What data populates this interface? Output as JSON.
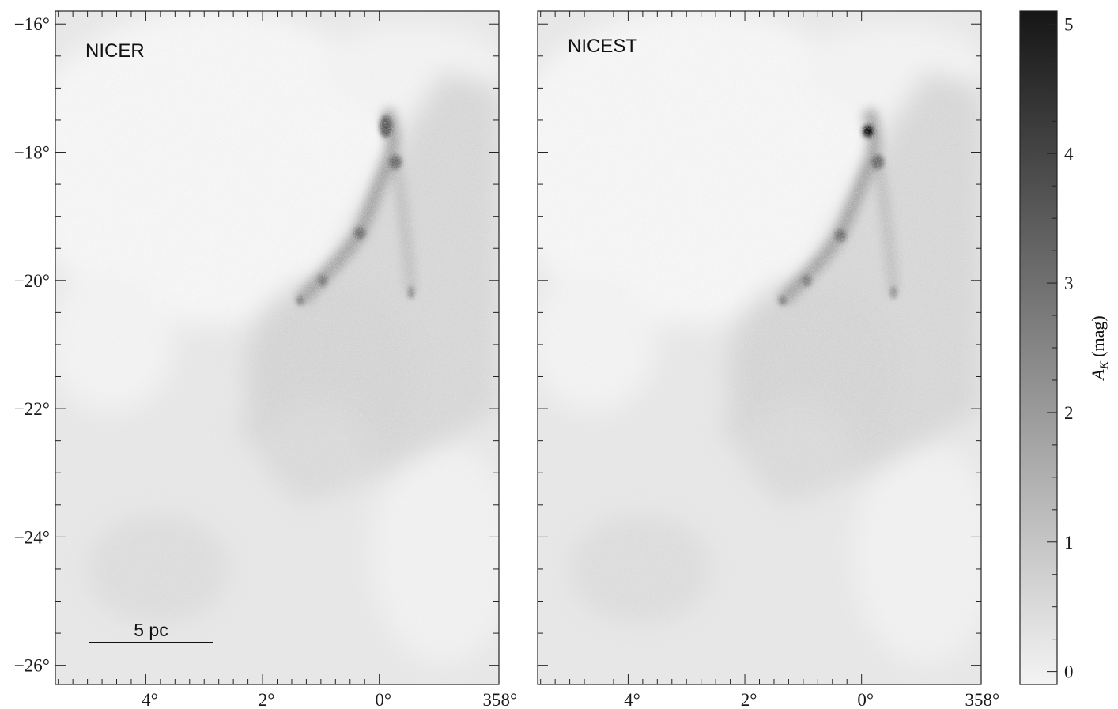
{
  "chart_data": [
    {
      "type": "heatmap",
      "panel_label": "NICER",
      "xlabel": "",
      "ylabel": "",
      "xlim": [
        5.55,
        357.95
      ],
      "ylim": [
        -26.3,
        -15.8
      ],
      "x_ticks": [
        {
          "value": 4,
          "label": "4°"
        },
        {
          "value": 2,
          "label": "2°"
        },
        {
          "value": 0,
          "label": "0°"
        },
        {
          "value": 358,
          "label": "358°"
        }
      ],
      "y_ticks": [
        {
          "value": -16,
          "label": "−16°"
        },
        {
          "value": -18,
          "label": "−18°"
        },
        {
          "value": -20,
          "label": "−20°"
        },
        {
          "value": -22,
          "label": "−22°"
        },
        {
          "value": -24,
          "label": "−24°"
        },
        {
          "value": -26,
          "label": "−26°"
        }
      ],
      "scale_bar": {
        "label": "5 pc"
      },
      "peak_extinction_mag": 2.5
    },
    {
      "type": "heatmap",
      "panel_label": "NICEST",
      "xlabel": "",
      "ylabel": "",
      "xlim": [
        5.55,
        357.95
      ],
      "ylim": [
        -26.3,
        -15.8
      ],
      "x_ticks": [
        {
          "value": 4,
          "label": "4°"
        },
        {
          "value": 2,
          "label": "2°"
        },
        {
          "value": 0,
          "label": "0°"
        },
        {
          "value": 358,
          "label": "358°"
        }
      ],
      "peak_extinction_mag": 4.8
    }
  ],
  "colorbar": {
    "label_main": "A",
    "label_sub": "K",
    "label_unit": " (mag)",
    "range": [
      -0.1,
      5.1
    ],
    "ticks": [
      {
        "value": 0,
        "label": "0"
      },
      {
        "value": 1,
        "label": "1"
      },
      {
        "value": 2,
        "label": "2"
      },
      {
        "value": 3,
        "label": "3"
      },
      {
        "value": 4,
        "label": "4"
      },
      {
        "value": 5,
        "label": "5"
      }
    ],
    "colormap": "grayscale, white (low) to black (high)"
  }
}
